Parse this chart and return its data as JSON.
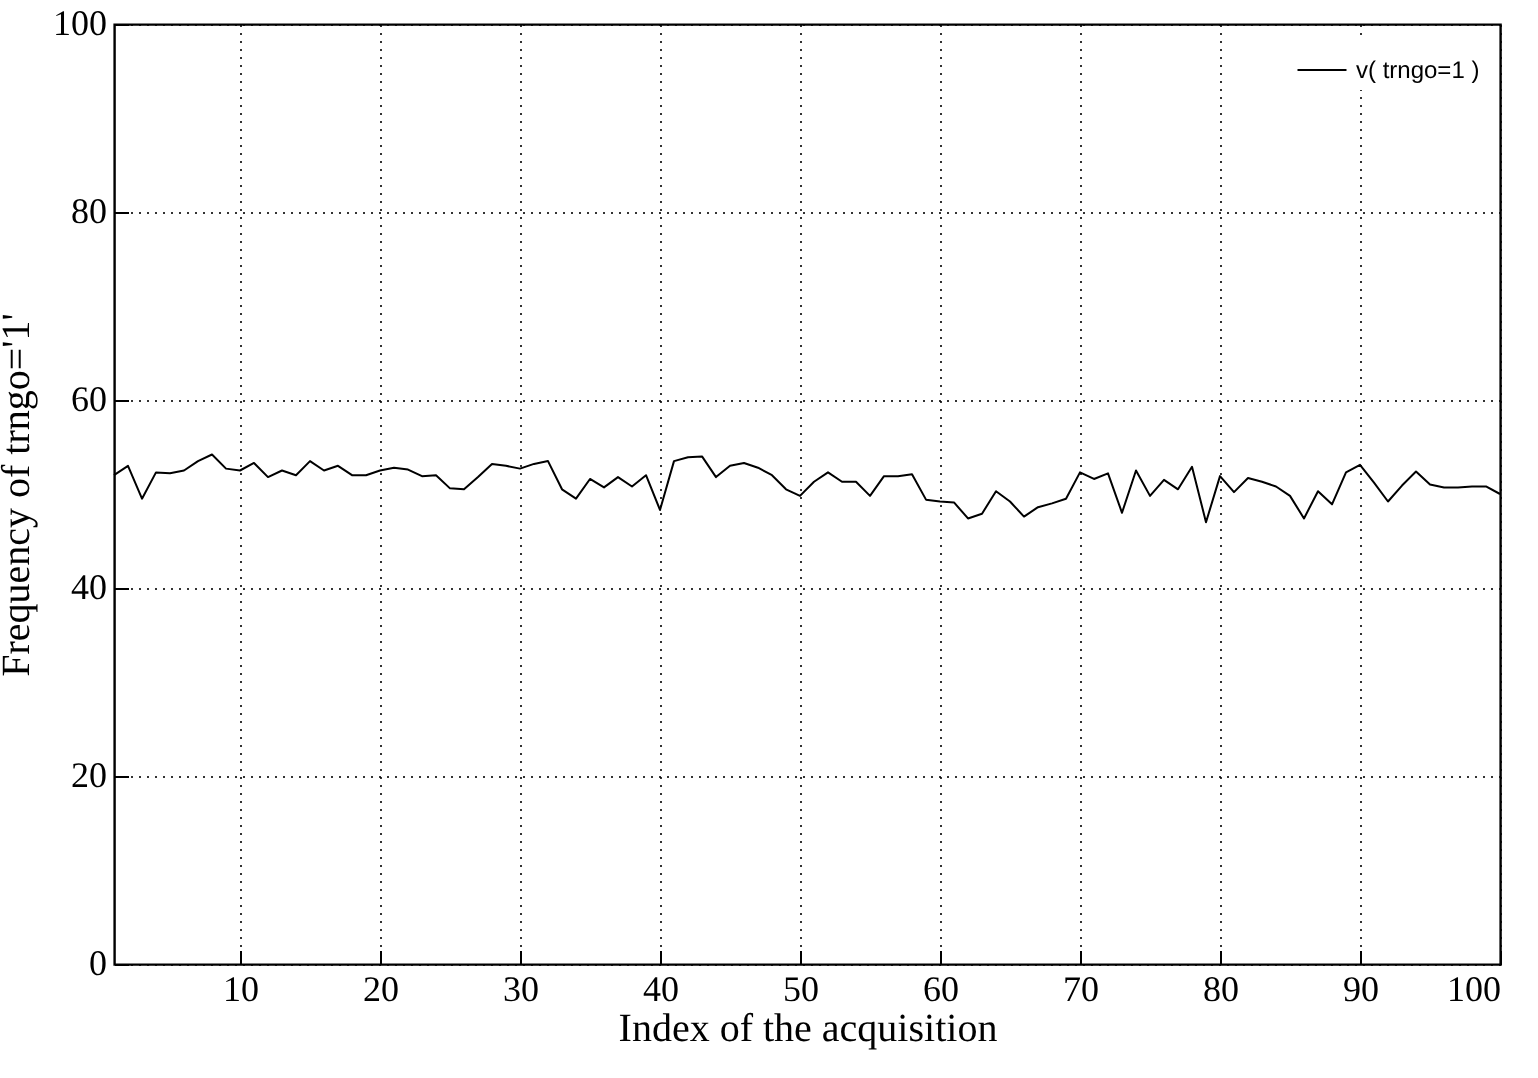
{
  "chart_data": {
    "type": "line",
    "xlabel": "Index of the acquisition",
    "ylabel": "Frequency of trngo='1'",
    "x": [
      1,
      2,
      3,
      4,
      5,
      6,
      7,
      8,
      9,
      10,
      11,
      12,
      13,
      14,
      15,
      16,
      17,
      18,
      19,
      20,
      21,
      22,
      23,
      24,
      25,
      26,
      27,
      28,
      29,
      30,
      31,
      32,
      33,
      34,
      35,
      36,
      37,
      38,
      39,
      40,
      41,
      42,
      43,
      44,
      45,
      46,
      47,
      48,
      49,
      50,
      51,
      52,
      53,
      54,
      55,
      56,
      57,
      58,
      59,
      60,
      61,
      62,
      63,
      64,
      65,
      66,
      67,
      68,
      69,
      70,
      71,
      72,
      73,
      74,
      75,
      76,
      77,
      78,
      79,
      80,
      81,
      82,
      83,
      84,
      85,
      86,
      87,
      88,
      89,
      90,
      91,
      92,
      93,
      94,
      95,
      96,
      97,
      98,
      99,
      100
    ],
    "series": [
      {
        "name": "v( trngo=1 )",
        "color": "#000000",
        "values": [
          52,
          53,
          49.5,
          52.3,
          52.2,
          52.5,
          53.5,
          54.2,
          52.7,
          52.5,
          53.3,
          51.8,
          52.5,
          52,
          53.5,
          52.5,
          53,
          52,
          52,
          52.5,
          52.8,
          52.6,
          51.9,
          52,
          50.6,
          50.5,
          51.8,
          53.2,
          53,
          52.7,
          53.2,
          53.5,
          50.5,
          49.5,
          51.6,
          50.7,
          51.8,
          50.8,
          52,
          48.3,
          53.5,
          53.9,
          54,
          51.8,
          53,
          53.3,
          52.8,
          52,
          50.5,
          49.8,
          51.3,
          52.3,
          51.3,
          51.3,
          49.8,
          51.9,
          51.9,
          52.1,
          49.4,
          49.2,
          49.1,
          47.4,
          47.9,
          50.3,
          49.2,
          47.6,
          48.6,
          49,
          49.5,
          52.3,
          51.6,
          52.2,
          48,
          52.5,
          49.8,
          51.5,
          50.5,
          52.9,
          47,
          51.9,
          50.2,
          51.7,
          51.3,
          50.8,
          49.8,
          47.4,
          50.3,
          48.9,
          52.3,
          53.1,
          51.2,
          49.2,
          50.9,
          52.4,
          51,
          50.7,
          50.7,
          50.8,
          50.8,
          50
        ]
      }
    ],
    "xlim": [
      1,
      100
    ],
    "xticks": [
      10,
      20,
      30,
      40,
      50,
      60,
      70,
      80,
      90,
      100
    ],
    "ylim": [
      0,
      100
    ],
    "yticks": [
      0,
      20,
      40,
      60,
      80,
      100
    ],
    "grid": true,
    "legend": "top right",
    "line_style": "solid",
    "marker": "none"
  }
}
